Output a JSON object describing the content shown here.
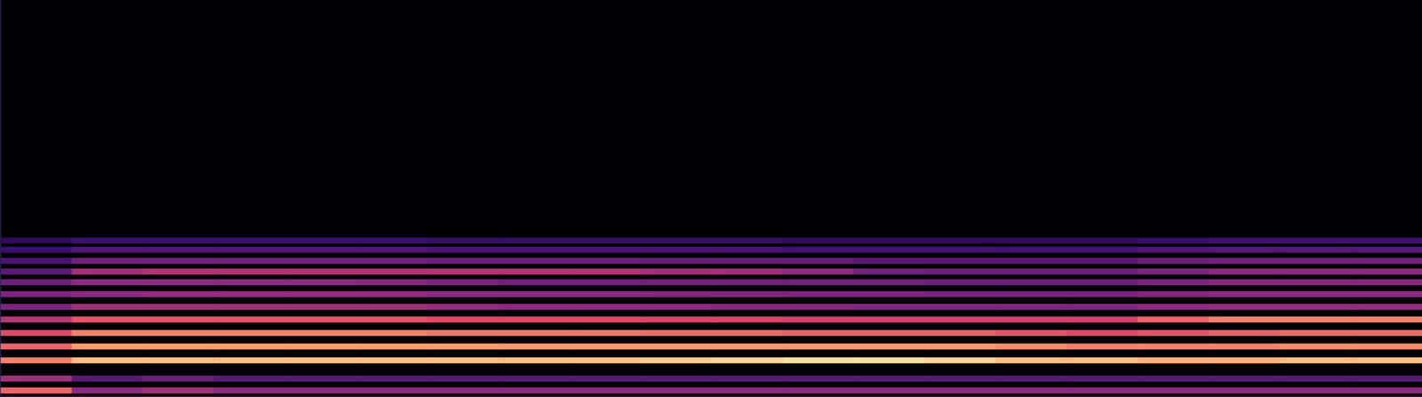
{
  "chart_data": {
    "type": "heatmap",
    "xlim": [
      0,
      100
    ],
    "ylim": [
      0,
      100
    ],
    "tick_labels": false,
    "grid": false,
    "color_range": [
      0,
      1
    ],
    "x_bins": [
      0,
      5,
      10,
      15,
      20,
      25,
      30,
      35,
      40,
      45,
      50,
      55,
      60,
      65,
      70,
      75,
      80,
      85,
      90,
      95,
      100
    ],
    "rows": [
      {
        "y": 1.5,
        "values": [
          0.75,
          0.5,
          0.55,
          0.5,
          0.5,
          0.5,
          0.5,
          0.5,
          0.5,
          0.5,
          0.5,
          0.5,
          0.5,
          0.5,
          0.5,
          0.5,
          0.5,
          0.5,
          0.5,
          0.5
        ]
      },
      {
        "y": 4.5,
        "values": [
          0.55,
          0.35,
          0.4,
          0.35,
          0.35,
          0.35,
          0.35,
          0.35,
          0.35,
          0.35,
          0.35,
          0.35,
          0.35,
          0.35,
          0.35,
          0.35,
          0.35,
          0.35,
          0.35,
          0.35
        ]
      },
      {
        "y": 9.1,
        "values": [
          0.8,
          0.9,
          0.9,
          0.9,
          0.9,
          0.9,
          0.9,
          0.9,
          0.9,
          0.92,
          0.93,
          0.95,
          0.95,
          0.93,
          0.9,
          0.9,
          0.88,
          0.88,
          0.9,
          0.9
        ]
      },
      {
        "y": 12.6,
        "values": [
          0.75,
          0.85,
          0.85,
          0.85,
          0.85,
          0.85,
          0.85,
          0.84,
          0.84,
          0.84,
          0.84,
          0.84,
          0.84,
          0.84,
          0.82,
          0.8,
          0.8,
          0.8,
          0.82,
          0.82
        ]
      },
      {
        "y": 16.0,
        "values": [
          0.7,
          0.8,
          0.8,
          0.8,
          0.8,
          0.8,
          0.78,
          0.78,
          0.78,
          0.76,
          0.76,
          0.74,
          0.74,
          0.74,
          0.72,
          0.7,
          0.72,
          0.74,
          0.76,
          0.76
        ]
      },
      {
        "y": 19.4,
        "values": [
          0.6,
          0.72,
          0.72,
          0.72,
          0.72,
          0.72,
          0.7,
          0.7,
          0.7,
          0.68,
          0.68,
          0.66,
          0.66,
          0.66,
          0.66,
          0.66,
          0.75,
          0.8,
          0.8,
          0.8
        ]
      },
      {
        "y": 22.6,
        "values": [
          0.45,
          0.55,
          0.55,
          0.55,
          0.55,
          0.55,
          0.52,
          0.5,
          0.5,
          0.5,
          0.48,
          0.48,
          0.46,
          0.46,
          0.46,
          0.46,
          0.5,
          0.52,
          0.52,
          0.52
        ]
      },
      {
        "y": 25.8,
        "values": [
          0.45,
          0.5,
          0.52,
          0.52,
          0.52,
          0.52,
          0.5,
          0.5,
          0.5,
          0.48,
          0.46,
          0.45,
          0.45,
          0.44,
          0.44,
          0.44,
          0.48,
          0.5,
          0.5,
          0.5
        ]
      },
      {
        "y": 28.8,
        "values": [
          0.4,
          0.5,
          0.5,
          0.5,
          0.5,
          0.48,
          0.45,
          0.42,
          0.42,
          0.42,
          0.42,
          0.42,
          0.42,
          0.4,
          0.4,
          0.4,
          0.45,
          0.48,
          0.48,
          0.48
        ]
      },
      {
        "y": 31.5,
        "values": [
          0.35,
          0.55,
          0.58,
          0.58,
          0.58,
          0.58,
          0.58,
          0.58,
          0.58,
          0.55,
          0.55,
          0.5,
          0.42,
          0.4,
          0.4,
          0.4,
          0.45,
          0.5,
          0.5,
          0.5
        ]
      },
      {
        "y": 34.2,
        "values": [
          0.3,
          0.42,
          0.42,
          0.42,
          0.42,
          0.42,
          0.4,
          0.4,
          0.4,
          0.38,
          0.38,
          0.38,
          0.35,
          0.35,
          0.35,
          0.35,
          0.4,
          0.42,
          0.42,
          0.42
        ]
      },
      {
        "y": 37.0,
        "values": [
          0.25,
          0.32,
          0.32,
          0.32,
          0.32,
          0.32,
          0.3,
          0.3,
          0.3,
          0.3,
          0.3,
          0.28,
          0.28,
          0.28,
          0.28,
          0.28,
          0.32,
          0.34,
          0.34,
          0.34
        ]
      },
      {
        "y": 39.3,
        "values": [
          0.2,
          0.25,
          0.25,
          0.25,
          0.25,
          0.25,
          0.22,
          0.22,
          0.22,
          0.22,
          0.22,
          0.2,
          0.2,
          0.2,
          0.2,
          0.2,
          0.24,
          0.26,
          0.26,
          0.26
        ]
      }
    ]
  }
}
